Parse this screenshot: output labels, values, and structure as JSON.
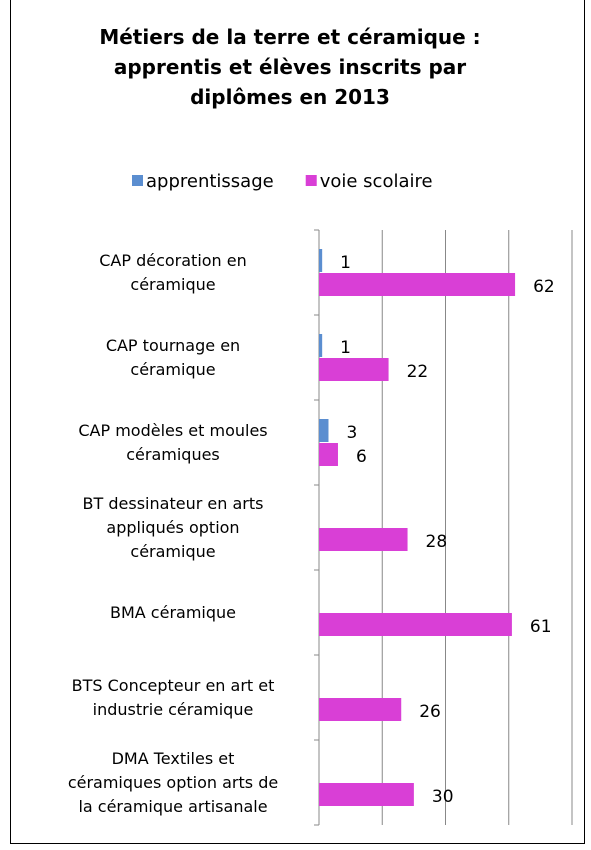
{
  "chart_data": {
    "type": "hbar",
    "title": "Métiers de la terre et céramique : apprentis et élèves inscrits par diplômes en 2013",
    "categories": [
      "CAP décoration en céramique",
      "CAP tournage en céramique",
      "CAP modèles et moules céramiques",
      "BT dessinateur en arts appliqués option céramique",
      "BMA céramique",
      "BTS Concepteur en art et industrie céramique",
      "DMA Textiles et céramiques option arts de la céramique artisanale"
    ],
    "series": [
      {
        "name": "apprentissage",
        "color": "#5b8ed0",
        "values": [
          1,
          1,
          3,
          null,
          null,
          null,
          null
        ]
      },
      {
        "name": "voie scolaire",
        "color": "#d93fd6",
        "values": [
          62,
          22,
          6,
          28,
          61,
          26,
          30
        ]
      }
    ],
    "xlim": [
      0,
      80
    ],
    "xticks": [
      0,
      20,
      40,
      60,
      80
    ],
    "grid": true,
    "legend": "top"
  }
}
